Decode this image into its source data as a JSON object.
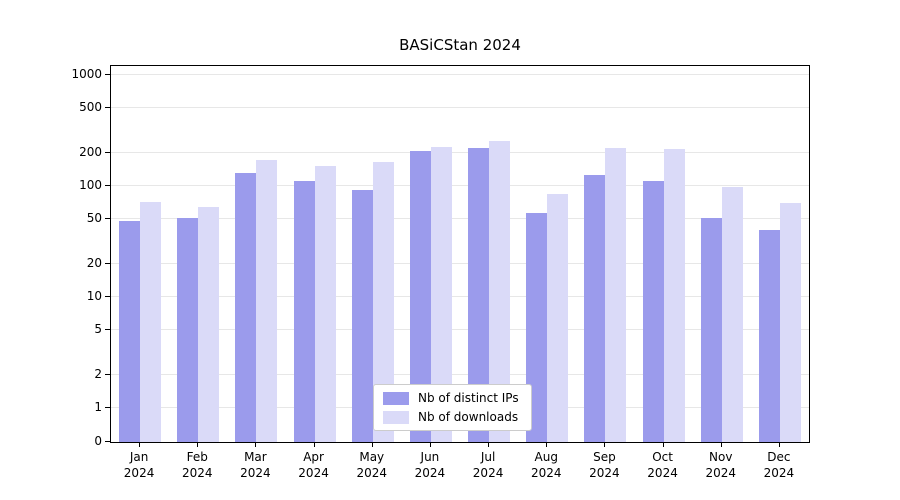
{
  "chart_data": {
    "type": "bar",
    "title": "BASiCStan 2024",
    "categories": [
      "Jan 2024",
      "Feb 2024",
      "Mar 2024",
      "Apr 2024",
      "May 2024",
      "Jun 2024",
      "Jul 2024",
      "Aug 2024",
      "Sep 2024",
      "Oct 2024",
      "Nov 2024",
      "Dec 2024"
    ],
    "series": [
      {
        "name": "Nb of distinct IPs",
        "color": "#9b9bec",
        "values": [
          48,
          52,
          130,
          110,
          92,
          205,
          220,
          57,
          125,
          110,
          51,
          40
        ]
      },
      {
        "name": "Nb of downloads",
        "color": "#dadaf8",
        "values": [
          72,
          65,
          170,
          150,
          165,
          225,
          255,
          85,
          220,
          215,
          98,
          70
        ]
      }
    ],
    "yticks": [
      0,
      1,
      2,
      5,
      10,
      20,
      50,
      100,
      200,
      500,
      1000
    ],
    "yscale": "log",
    "ylim": [
      0,
      1000
    ],
    "xlabel": "",
    "ylabel": "",
    "grid": true,
    "legend_position": "bottom-center"
  }
}
